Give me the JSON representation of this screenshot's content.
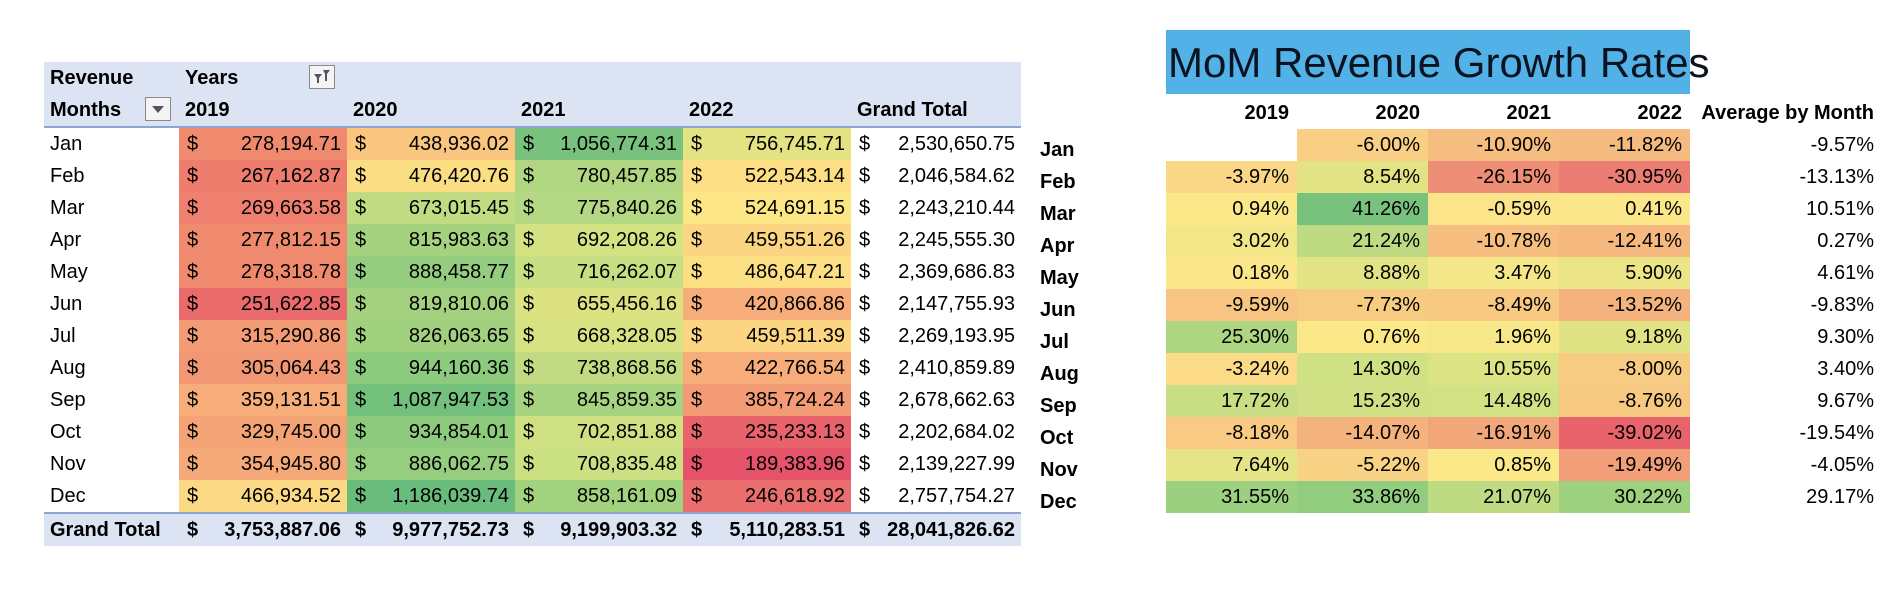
{
  "pivot": {
    "corner_label": "Revenue",
    "col_field": "Years",
    "row_field": "Months",
    "years": [
      "2019",
      "2020",
      "2021",
      "2022"
    ],
    "grand_total_label": "Grand Total",
    "currency_symbol": "$",
    "rows": [
      {
        "month": "Jan",
        "values": [
          "278,194.71",
          "438,936.02",
          "1,056,774.31",
          "756,745.71"
        ],
        "total": "2,530,650.75",
        "colors": [
          "#f08a6f",
          "#f9c57f",
          "#79c27d",
          "#e4e383"
        ]
      },
      {
        "month": "Feb",
        "values": [
          "267,162.87",
          "476,420.76",
          "780,457.85",
          "522,543.14"
        ],
        "total": "2,046,584.62",
        "colors": [
          "#ee7d6e",
          "#fbdd83",
          "#b0d682",
          "#fcdf84"
        ]
      },
      {
        "month": "Mar",
        "values": [
          "269,663.58",
          "673,015.45",
          "775,840.26",
          "524,691.15"
        ],
        "total": "2,243,210.44",
        "colors": [
          "#ef806f",
          "#c1db82",
          "#b4d883",
          "#fde685"
        ]
      },
      {
        "month": "Apr",
        "values": [
          "277,812.15",
          "815,983.63",
          "692,208.26",
          "459,551.26"
        ],
        "total": "2,245,555.30",
        "colors": [
          "#f08a6f",
          "#a4d27f",
          "#d4e283",
          "#fbd582"
        ]
      },
      {
        "month": "May",
        "values": [
          "278,318.78",
          "888,458.77",
          "716,262.07",
          "486,647.21"
        ],
        "total": "2,369,686.83",
        "colors": [
          "#f08a6f",
          "#94cd7f",
          "#c8de82",
          "#fddf83"
        ]
      },
      {
        "month": "Jun",
        "values": [
          "251,622.85",
          "819,810.06",
          "655,456.16",
          "420,866.86"
        ],
        "total": "2,147,755.93",
        "colors": [
          "#ea6b6c",
          "#a3d17f",
          "#dce281",
          "#f6ad79"
        ]
      },
      {
        "month": "Jul",
        "values": [
          "315,290.86",
          "826,063.65",
          "668,328.05",
          "459,511.39"
        ],
        "total": "2,269,193.95",
        "colors": [
          "#f29b74",
          "#a1d17f",
          "#d7e282",
          "#fbd582"
        ]
      },
      {
        "month": "Aug",
        "values": [
          "305,064.43",
          "944,160.36",
          "738,868.56",
          "422,766.54"
        ],
        "total": "2,410,859.89",
        "colors": [
          "#f19774",
          "#8cca7e",
          "#c2db82",
          "#f6ad79"
        ]
      },
      {
        "month": "Sep",
        "values": [
          "359,131.51",
          "1,087,947.53",
          "845,859.35",
          "385,724.24"
        ],
        "total": "2,678,662.63",
        "colors": [
          "#f6ad79",
          "#73bf7c",
          "#a6d380",
          "#f29b74"
        ]
      },
      {
        "month": "Oct",
        "values": [
          "329,745.00",
          "934,854.01",
          "702,851.88",
          "235,233.13"
        ],
        "total": "2,202,684.02",
        "colors": [
          "#f4a376",
          "#8eca7e",
          "#cee082",
          "#e8636b"
        ]
      },
      {
        "month": "Nov",
        "values": [
          "354,945.80",
          "886,062.75",
          "708,835.48",
          "189,383.96"
        ],
        "total": "2,139,227.99",
        "colors": [
          "#f5a878",
          "#96ce7f",
          "#cbe082",
          "#e5536a"
        ]
      },
      {
        "month": "Dec",
        "values": [
          "466,934.52",
          "1,186,039.74",
          "858,161.09",
          "246,618.92"
        ],
        "total": "2,757,754.27",
        "colors": [
          "#fcd984",
          "#69bc7b",
          "#a3d27f",
          "#e96e6d"
        ]
      }
    ],
    "totals": {
      "values": [
        "3,753,887.06",
        "9,977,752.73",
        "9,199,903.32",
        "5,110,283.51"
      ],
      "grand": "28,041,826.62"
    }
  },
  "growth": {
    "title": "MoM Revenue Growth Rates",
    "years": [
      "2019",
      "2020",
      "2021",
      "2022"
    ],
    "avg_header": "Average by Month",
    "rows": [
      {
        "month": "Jan",
        "values": [
          "",
          "-6.00%",
          "-10.90%",
          "-11.82%"
        ],
        "avg": "-9.57%",
        "colors": [
          "#ffffff",
          "#f9cf85",
          "#f5be80",
          "#f4ba7f"
        ]
      },
      {
        "month": "Feb",
        "values": [
          "-3.97%",
          "8.54%",
          "-26.15%",
          "-30.95%"
        ],
        "avg": "-13.13%",
        "colors": [
          "#fad786",
          "#e1e384",
          "#ee8e76",
          "#ec7d73"
        ]
      },
      {
        "month": "Mar",
        "values": [
          "0.94%",
          "41.26%",
          "-0.59%",
          "0.41%"
        ],
        "avg": "10.51%",
        "colors": [
          "#fbe989",
          "#79c27d",
          "#fbe489",
          "#fbe789"
        ]
      },
      {
        "month": "Apr",
        "values": [
          "3.02%",
          "21.24%",
          "-10.78%",
          "-12.41%"
        ],
        "avg": "0.27%",
        "colors": [
          "#f2e788",
          "#bedb83",
          "#f6bf80",
          "#f5b87e"
        ]
      },
      {
        "month": "May",
        "values": [
          "0.18%",
          "8.88%",
          "3.47%",
          "5.90%"
        ],
        "avg": "4.61%",
        "colors": [
          "#fbe689",
          "#e1e384",
          "#f3e789",
          "#ebe587"
        ]
      },
      {
        "month": "Jun",
        "values": [
          "-9.59%",
          "-7.73%",
          "-8.49%",
          "-13.52%"
        ],
        "avg": "-9.83%",
        "colors": [
          "#f7c581",
          "#f8cb83",
          "#f7c982",
          "#f4b37e"
        ]
      },
      {
        "month": "Jul",
        "values": [
          "25.30%",
          "0.76%",
          "1.96%",
          "9.18%"
        ],
        "avg": "9.30%",
        "colors": [
          "#aed581",
          "#fbe989",
          "#f6e889",
          "#e0e384"
        ]
      },
      {
        "month": "Aug",
        "values": [
          "-3.24%",
          "14.30%",
          "10.55%",
          "-8.00%"
        ],
        "avg": "3.40%",
        "colors": [
          "#fbdb87",
          "#d0e084",
          "#dce385",
          "#f8cb83"
        ]
      },
      {
        "month": "Sep",
        "values": [
          "17.72%",
          "15.23%",
          "14.48%",
          "-8.76%"
        ],
        "avg": "9.67%",
        "colors": [
          "#c9de84",
          "#d1e085",
          "#d3e185",
          "#f7c882"
        ]
      },
      {
        "month": "Oct",
        "values": [
          "-8.18%",
          "-14.07%",
          "-16.91%",
          "-39.02%"
        ],
        "avg": "-19.54%",
        "colors": [
          "#f8ca83",
          "#f4b27d",
          "#f2a77b",
          "#e8636b"
        ]
      },
      {
        "month": "Nov",
        "values": [
          "7.64%",
          "-5.22%",
          "0.85%",
          "-19.49%"
        ],
        "avg": "-4.05%",
        "colors": [
          "#e5e487",
          "#f9d385",
          "#fbe889",
          "#f19e79"
        ]
      },
      {
        "month": "Dec",
        "values": [
          "31.55%",
          "33.86%",
          "21.07%",
          "30.22%"
        ],
        "avg": "29.17%",
        "colors": [
          "#9ad07f",
          "#92cd7f",
          "#bedb83",
          "#9dd180"
        ]
      }
    ]
  }
}
